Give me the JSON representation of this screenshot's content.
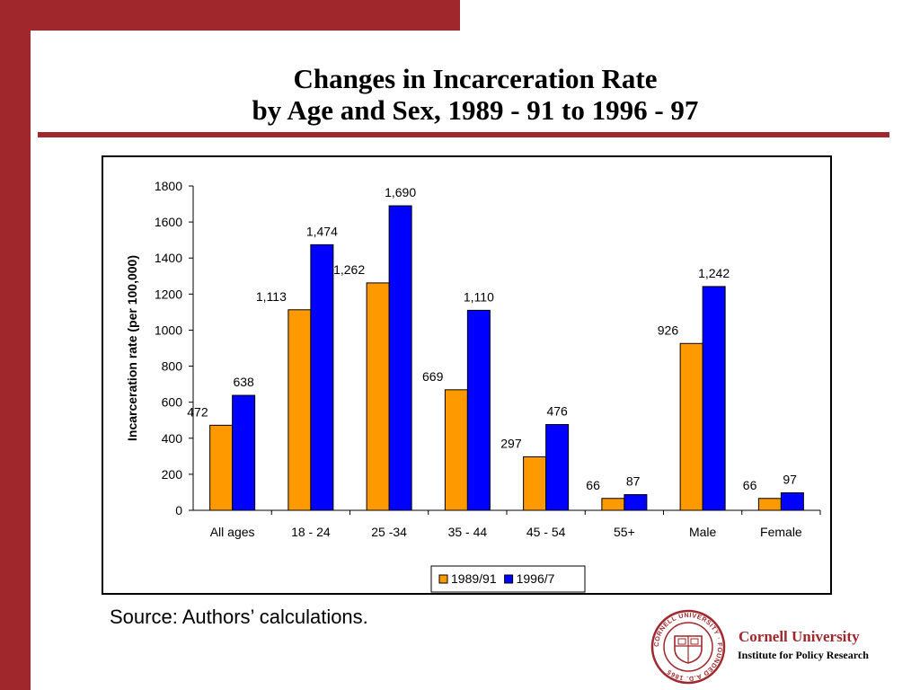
{
  "slide": {
    "title_line1": "Changes in Incarceration Rate",
    "title_line2": "by Age and Sex, 1989 - 91 to 1996 - 97",
    "source": "Source: Authors’ calculations.",
    "institution": "Cornell University",
    "institution_sub": "Institute for Policy Research",
    "seal_text": "CORNELL UNIVERSITY · FOUNDED A.D. 1865",
    "colors": {
      "accent": "#a0282c"
    }
  },
  "chart_data": {
    "type": "bar",
    "categories": [
      "All ages",
      "18 - 24",
      "25 -34",
      "35 - 44",
      "45 - 54",
      "55+",
      "Male",
      "Female"
    ],
    "series": [
      {
        "name": "1989/91",
        "color": "#ff9900",
        "values": [
          472,
          1113,
          1262,
          669,
          297,
          66,
          926,
          66
        ],
        "labels": [
          "472",
          "1,113",
          "1,262",
          "669",
          "297",
          "66",
          "926",
          "66"
        ]
      },
      {
        "name": "1996/7",
        "color": "#0000ff",
        "values": [
          638,
          1474,
          1690,
          1110,
          476,
          87,
          1242,
          97
        ],
        "labels": [
          "638",
          "1,474",
          "1,690",
          "1,110",
          "476",
          "87",
          "1,242",
          "97"
        ]
      }
    ],
    "ylabel": "Incarceration rate (per 100,000)",
    "xlabel": "",
    "ylim": [
      0,
      1800
    ],
    "yticks": [
      0,
      200,
      400,
      600,
      800,
      1000,
      1200,
      1400,
      1600,
      1800
    ],
    "grid": false,
    "legend": "bottom-center"
  }
}
